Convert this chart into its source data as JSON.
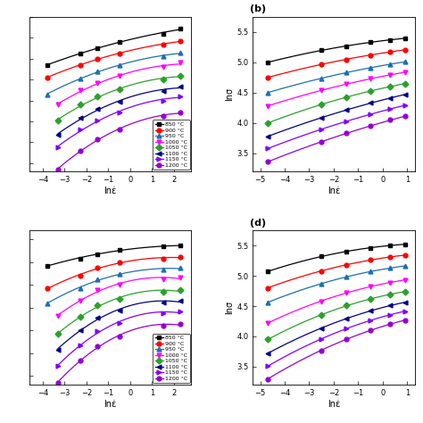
{
  "temperatures": [
    "850 °C",
    "900 °C",
    "950 °C",
    "1000 °C",
    "1050 °C",
    "1100 °C",
    "1150 °C",
    "1200 °C"
  ],
  "colors": [
    "black",
    "red",
    "#1a6faf",
    "magenta",
    "#2ca02c",
    "#00008B",
    "#7f00ff",
    "#9400D3"
  ],
  "markers": [
    "s",
    "o",
    "^",
    "v",
    "D",
    "<",
    ">",
    "o"
  ],
  "panels": {
    "top_left": {
      "show_label": false,
      "show_legend": true,
      "show_ylabel": false,
      "xlabel": "lnε̇",
      "xlim": [
        -4.6,
        2.8
      ],
      "ylim": [
        2.8,
        6.5
      ],
      "x_ticks": [
        -4,
        -3,
        -2,
        -1,
        0,
        1,
        2
      ],
      "y_ticks": [],
      "curves_x": [
        [
          -3.8,
          -2.3,
          -1.5,
          -0.5,
          1.5,
          2.3
        ],
        [
          -3.8,
          -2.3,
          -1.5,
          -0.5,
          1.5,
          2.3
        ],
        [
          -3.8,
          -2.3,
          -1.5,
          -0.5,
          1.5,
          2.3
        ],
        [
          -3.3,
          -2.3,
          -1.5,
          -0.5,
          1.5,
          2.3
        ],
        [
          -3.3,
          -2.3,
          -1.5,
          -0.5,
          1.5,
          2.3
        ],
        [
          -3.3,
          -2.3,
          -1.5,
          -0.5,
          1.5,
          2.3
        ],
        [
          -3.3,
          -2.3,
          -1.5,
          -0.5,
          1.5,
          2.3
        ],
        [
          -3.3,
          -2.3,
          -1.5,
          -0.5,
          1.5,
          2.3
        ]
      ],
      "curves_y": [
        [
          5.35,
          5.62,
          5.76,
          5.9,
          6.1,
          6.22
        ],
        [
          5.05,
          5.35,
          5.5,
          5.63,
          5.83,
          5.93
        ],
        [
          4.65,
          5.02,
          5.2,
          5.34,
          5.55,
          5.65
        ],
        [
          4.4,
          4.74,
          4.92,
          5.08,
          5.3,
          5.4
        ],
        [
          4.02,
          4.4,
          4.59,
          4.76,
          5.0,
          5.1
        ],
        [
          3.68,
          4.08,
          4.29,
          4.47,
          4.73,
          4.83
        ],
        [
          3.38,
          3.8,
          4.02,
          4.22,
          4.5,
          4.6
        ],
        [
          2.85,
          3.3,
          3.58,
          3.8,
          4.12,
          4.22
        ]
      ]
    },
    "top_right": {
      "show_label": true,
      "label": "(b)",
      "show_legend": false,
      "show_ylabel": true,
      "xlabel": "lnε̇",
      "ylabel": "lnσ",
      "xlim": [
        -5.3,
        1.3
      ],
      "ylim": [
        3.2,
        5.75
      ],
      "x_ticks": [
        -5,
        -4,
        -3,
        -2,
        -1,
        0,
        1
      ],
      "y_ticks": [
        3.5,
        4.0,
        4.5,
        5.0,
        5.5
      ],
      "curves_x": [
        [
          -4.7,
          -2.5,
          -1.5,
          -0.5,
          0.3,
          0.9
        ],
        [
          -4.7,
          -2.5,
          -1.5,
          -0.5,
          0.3,
          0.9
        ],
        [
          -4.7,
          -2.5,
          -1.5,
          -0.5,
          0.3,
          0.9
        ],
        [
          -4.7,
          -2.5,
          -1.5,
          -0.5,
          0.3,
          0.9
        ],
        [
          -4.7,
          -2.5,
          -1.5,
          -0.5,
          0.3,
          0.9
        ],
        [
          -4.7,
          -2.5,
          -1.5,
          -0.5,
          0.3,
          0.9
        ],
        [
          -4.7,
          -2.5,
          -1.5,
          -0.5,
          0.3,
          0.9
        ],
        [
          -4.7,
          -2.5,
          -1.5,
          -0.5,
          0.3,
          0.9
        ]
      ],
      "curves_y": [
        [
          5.0,
          5.2,
          5.27,
          5.33,
          5.37,
          5.4
        ],
        [
          4.75,
          4.97,
          5.05,
          5.12,
          5.17,
          5.21
        ],
        [
          4.5,
          4.74,
          4.83,
          4.91,
          4.97,
          5.01
        ],
        [
          4.28,
          4.54,
          4.64,
          4.73,
          4.79,
          4.84
        ],
        [
          4.0,
          4.3,
          4.43,
          4.53,
          4.6,
          4.65
        ],
        [
          3.78,
          4.08,
          4.22,
          4.33,
          4.41,
          4.47
        ],
        [
          3.58,
          3.89,
          4.03,
          4.15,
          4.23,
          4.29
        ],
        [
          3.36,
          3.69,
          3.83,
          3.95,
          4.05,
          4.11
        ]
      ]
    },
    "bottom_left": {
      "show_label": false,
      "show_legend": true,
      "show_ylabel": false,
      "xlabel": "lnε̇",
      "xlim": [
        -4.6,
        2.8
      ],
      "ylim": [
        2.8,
        6.2
      ],
      "x_ticks": [
        -4,
        -3,
        -2,
        -1,
        0,
        1,
        2
      ],
      "y_ticks": [],
      "curves_x": [
        [
          -3.8,
          -2.3,
          -1.5,
          -0.5,
          1.5,
          2.3
        ],
        [
          -3.8,
          -2.3,
          -1.5,
          -0.5,
          1.5,
          2.3
        ],
        [
          -3.8,
          -2.3,
          -1.5,
          -0.5,
          1.5,
          2.3
        ],
        [
          -3.3,
          -2.3,
          -1.5,
          -0.5,
          1.5,
          2.3
        ],
        [
          -3.3,
          -2.3,
          -1.5,
          -0.5,
          1.5,
          2.3
        ],
        [
          -3.3,
          -2.3,
          -1.5,
          -0.5,
          1.5,
          2.3
        ],
        [
          -3.3,
          -2.3,
          -1.5,
          -0.5,
          1.5,
          2.3
        ],
        [
          -3.3,
          -2.3,
          -1.5,
          -0.5,
          1.5,
          2.3
        ]
      ],
      "curves_y": [
        [
          5.42,
          5.58,
          5.68,
          5.77,
          5.84,
          5.87
        ],
        [
          4.92,
          5.2,
          5.38,
          5.49,
          5.58,
          5.61
        ],
        [
          4.6,
          4.92,
          5.12,
          5.24,
          5.34,
          5.37
        ],
        [
          4.32,
          4.66,
          4.88,
          5.01,
          5.13,
          5.16
        ],
        [
          3.92,
          4.3,
          4.55,
          4.7,
          4.85,
          4.88
        ],
        [
          3.58,
          4.0,
          4.28,
          4.44,
          4.61,
          4.65
        ],
        [
          3.22,
          3.67,
          3.98,
          4.17,
          4.37,
          4.41
        ],
        [
          2.85,
          3.33,
          3.66,
          3.87,
          4.1,
          4.14
        ]
      ]
    },
    "bottom_right": {
      "show_label": true,
      "label": "(d)",
      "show_legend": false,
      "show_ylabel": true,
      "xlabel": "lnε̇",
      "ylabel": "lnσ",
      "xlim": [
        -5.3,
        1.3
      ],
      "ylim": [
        3.2,
        5.75
      ],
      "x_ticks": [
        -5,
        -4,
        -3,
        -2,
        -1,
        0,
        1
      ],
      "y_ticks": [
        3.5,
        4.0,
        4.5,
        5.0,
        5.5
      ],
      "curves_x": [
        [
          -4.7,
          -2.5,
          -1.5,
          -0.5,
          0.3,
          0.9
        ],
        [
          -4.7,
          -2.5,
          -1.5,
          -0.5,
          0.3,
          0.9
        ],
        [
          -4.7,
          -2.5,
          -1.5,
          -0.5,
          0.3,
          0.9
        ],
        [
          -4.7,
          -2.5,
          -1.5,
          -0.5,
          0.3,
          0.9
        ],
        [
          -4.7,
          -2.5,
          -1.5,
          -0.5,
          0.3,
          0.9
        ],
        [
          -4.7,
          -2.5,
          -1.5,
          -0.5,
          0.3,
          0.9
        ],
        [
          -4.7,
          -2.5,
          -1.5,
          -0.5,
          0.3,
          0.9
        ],
        [
          -4.7,
          -2.5,
          -1.5,
          -0.5,
          0.3,
          0.9
        ]
      ],
      "curves_y": [
        [
          5.07,
          5.32,
          5.4,
          5.46,
          5.5,
          5.52
        ],
        [
          4.8,
          5.08,
          5.18,
          5.26,
          5.31,
          5.34
        ],
        [
          4.56,
          4.87,
          4.98,
          5.07,
          5.13,
          5.16
        ],
        [
          4.22,
          4.58,
          4.72,
          4.82,
          4.89,
          4.93
        ],
        [
          3.95,
          4.35,
          4.51,
          4.62,
          4.69,
          4.74
        ],
        [
          3.72,
          4.13,
          4.3,
          4.42,
          4.51,
          4.56
        ],
        [
          3.51,
          3.95,
          4.13,
          4.27,
          4.36,
          4.41
        ],
        [
          3.3,
          3.76,
          3.96,
          4.1,
          4.21,
          4.26
        ]
      ]
    }
  }
}
